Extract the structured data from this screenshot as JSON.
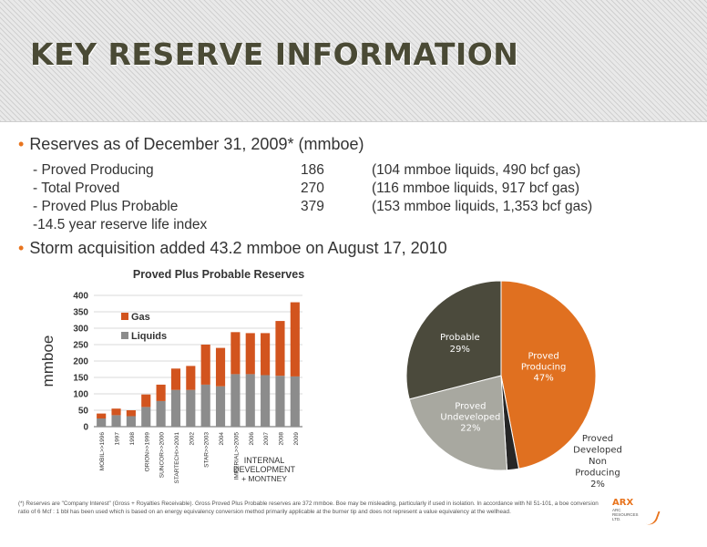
{
  "title": "KEY RESERVE INFORMATION",
  "bullets": {
    "b1": "Reserves as of December 31, 2009*   (mmboe)",
    "b2": "Storm acquisition added 43.2 mmboe on August 17, 2010"
  },
  "reserves_rows": [
    {
      "label": "- Proved Producing",
      "value": "186",
      "detail": "(104 mmboe liquids, 490 bcf gas)"
    },
    {
      "label": "- Total Proved",
      "value": "270",
      "detail": "(116 mmboe liquids, 917 bcf gas)"
    },
    {
      "label": "- Proved Plus Probable",
      "value": "379",
      "detail": "(153 mmboe liquids, 1,353 bcf gas)"
    },
    {
      "label": "-14.5 year reserve life index",
      "value": "",
      "detail": ""
    }
  ],
  "footnote": "(*) Reserves are \"Company Interest\" (Gross + Royalties Receivable). Gross Proved Plus Probable reserves are 372 mmboe. Boe may be misleading, particularly if used in isolation. In accordance with NI 51-101, a boe conversion ratio of 6 Mcf : 1 bbl has been used which is based on an energy equivalency conversion method primarily applicable at the burner tip and does not represent a value equivalency at the wellhead.",
  "logo": {
    "name": "ARX",
    "line1": "ARC",
    "line2": "RESOURCES",
    "line3": "LTD."
  },
  "colors": {
    "gas": "#d2541e",
    "liquids": "#8c8c8c",
    "proved_producing": "#e07020",
    "probable": "#4b4a3c",
    "undeveloped": "#a8a8a0",
    "non_producing": "#262626"
  },
  "chart_data": [
    {
      "type": "bar",
      "stacked": true,
      "title": "Proved Plus Probable Reserves",
      "ylabel": "mmboe",
      "ylim": [
        0,
        400
      ],
      "yticks": [
        "0",
        "50",
        "100",
        "150",
        "200",
        "250",
        "300",
        "350",
        "400"
      ],
      "categories": [
        "MOBIL>>1996",
        "1997",
        "1998",
        "ORION>>1999",
        "SUNCOR>>2000",
        "STARTECH>>2001",
        "2002",
        "STAR>>2003",
        "2004",
        "IMPERIAL>>2005",
        "2006",
        "2007",
        "2008",
        "2009"
      ],
      "series": [
        {
          "name": "Liquids",
          "values": [
            25,
            35,
            32,
            60,
            78,
            112,
            112,
            128,
            123,
            160,
            160,
            157,
            155,
            153
          ]
        },
        {
          "name": "Gas",
          "values": [
            15,
            20,
            18,
            38,
            50,
            65,
            73,
            122,
            117,
            128,
            125,
            128,
            167,
            226
          ]
        }
      ],
      "legend_position": "top-left",
      "annotations": [
        "INTERNAL DEVELOPMENT",
        "+ MONTNEY"
      ]
    },
    {
      "type": "pie",
      "slices": [
        {
          "label": "Proved Producing",
          "value": 47,
          "display": "47%"
        },
        {
          "label": "Proved Developed Non Producing",
          "value": 2,
          "display": "2%"
        },
        {
          "label": "Proved Undeveloped",
          "value": 22,
          "display": "22%"
        },
        {
          "label": "Probable",
          "value": 29,
          "display": "29%"
        }
      ]
    }
  ]
}
